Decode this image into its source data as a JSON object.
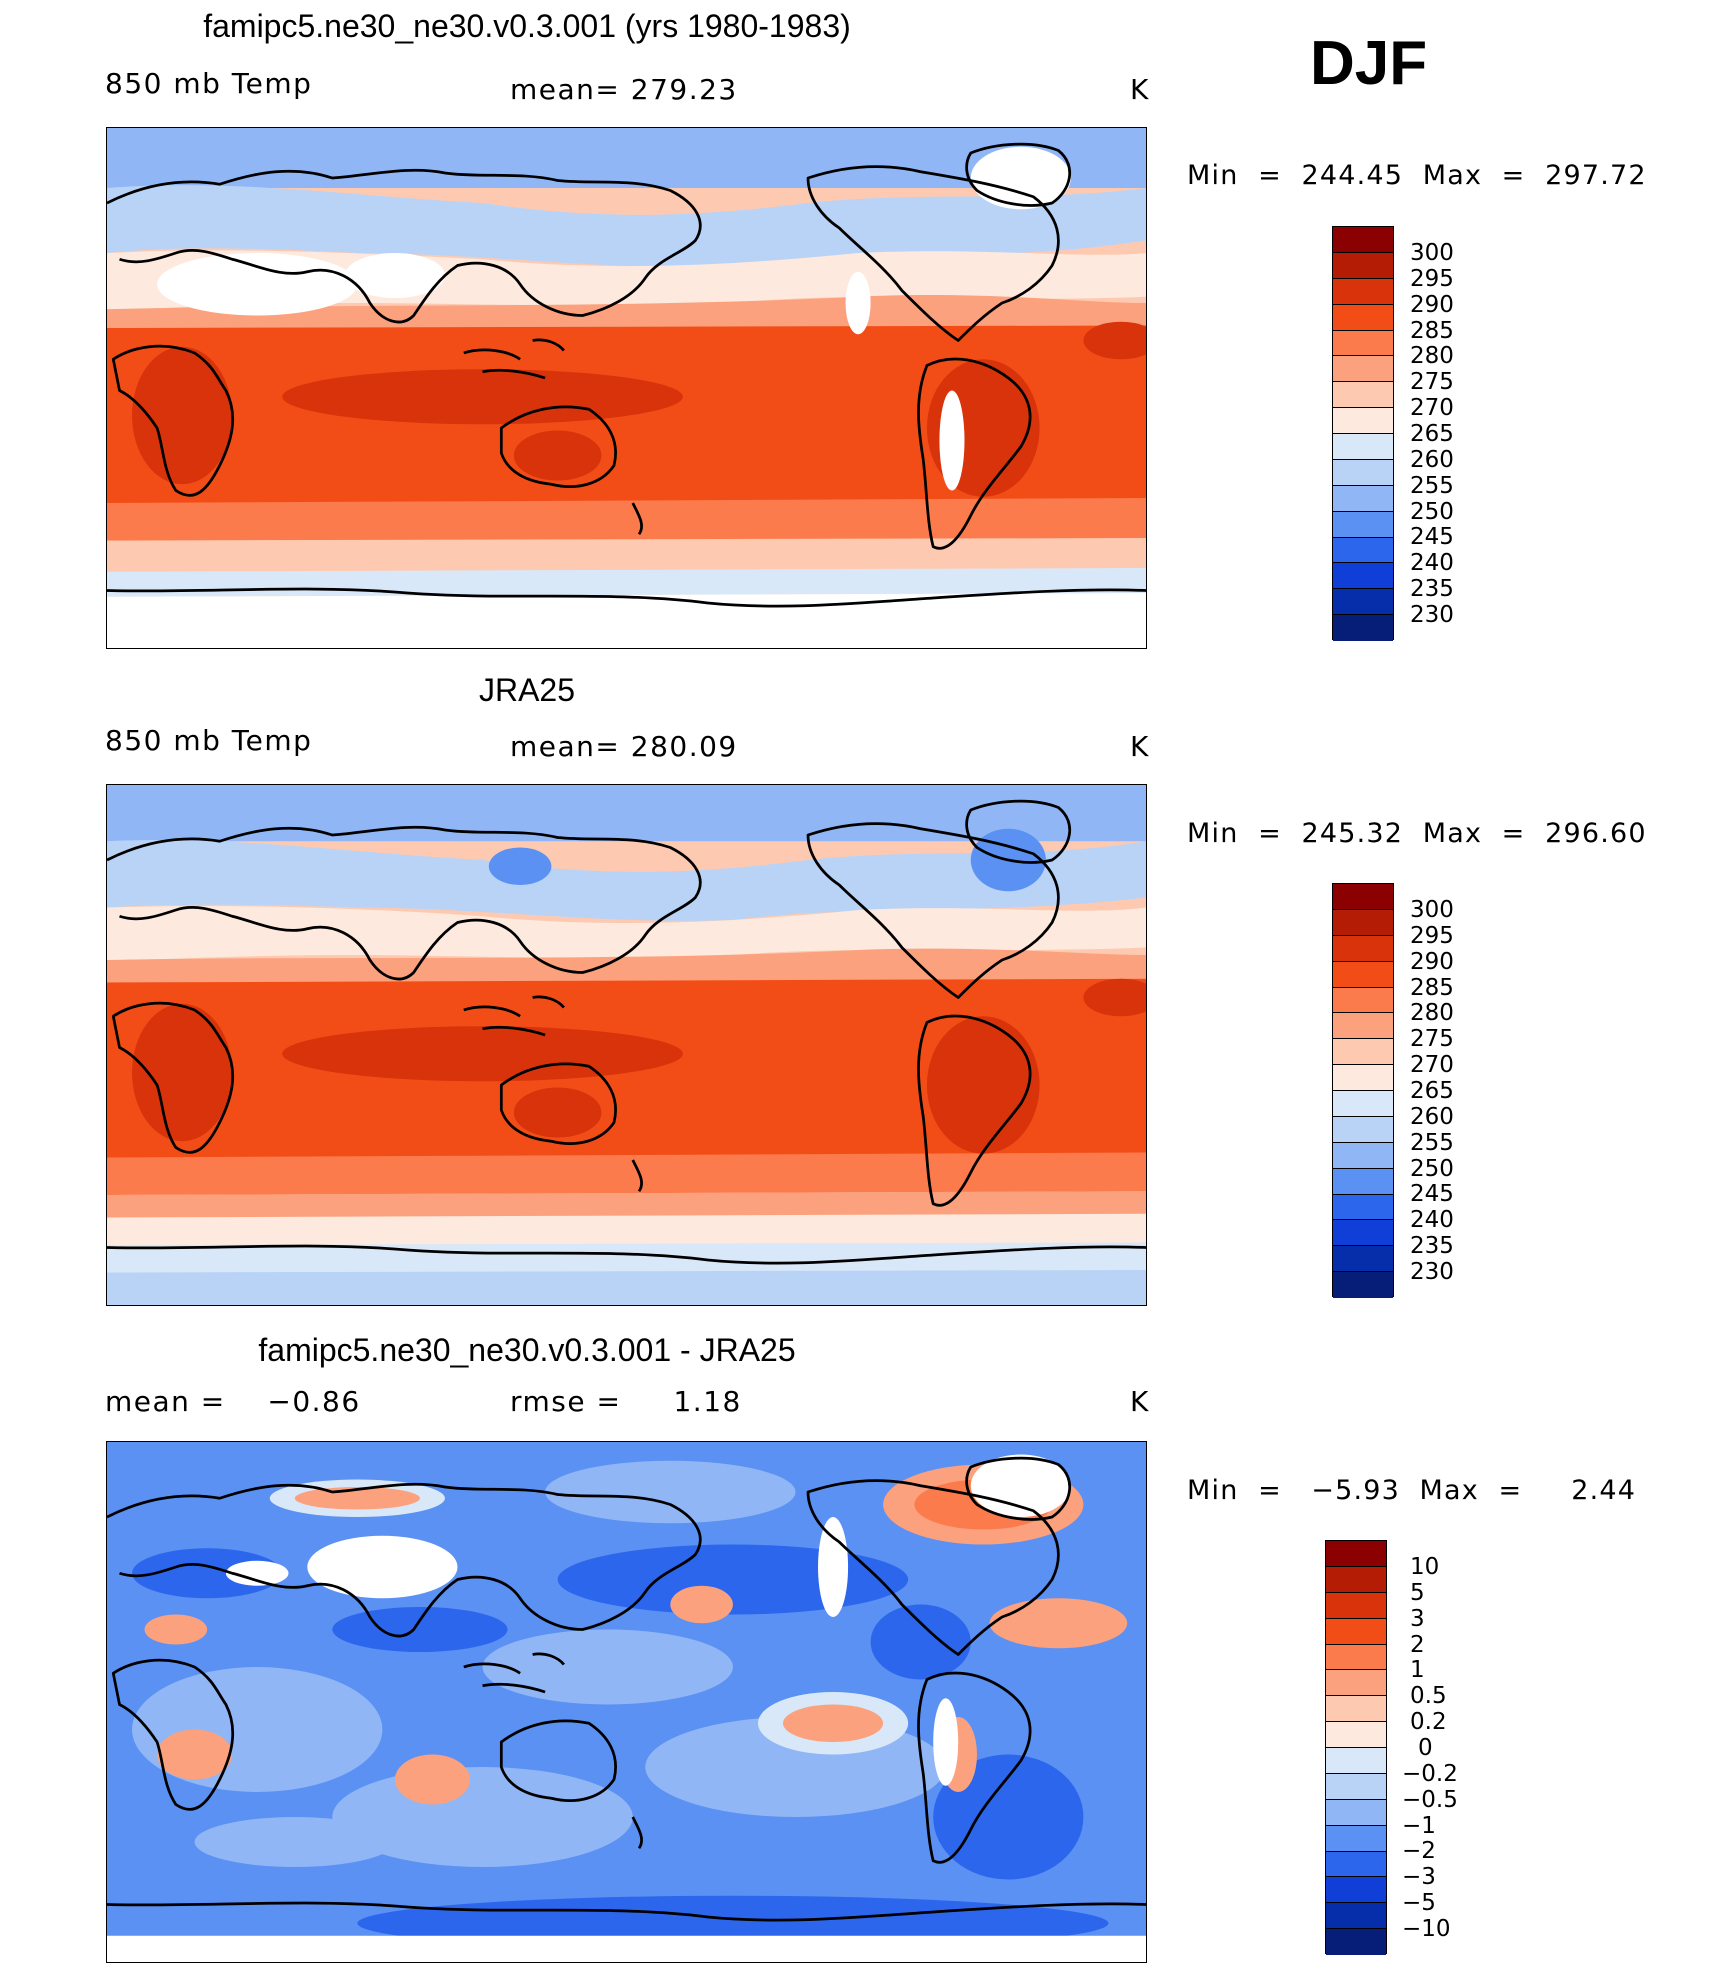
{
  "season": "DJF",
  "units_symbol": "K",
  "panels": [
    {
      "title": "famipc5.ne30_ne30.v0.3.001 (yrs 1980-1983)",
      "left_label": "850 mb Temp",
      "center_label": "mean= 279.23",
      "right_label": "K",
      "minmax": "Min  =  244.45  Max  =  297.72"
    },
    {
      "title": "JRA25",
      "left_label": "850 mb Temp",
      "center_label": "mean= 280.09",
      "right_label": "K",
      "minmax": "Min  =  245.32  Max  =  296.60"
    },
    {
      "title": "famipc5.ne30_ne30.v0.3.001 - JRA25",
      "left_label": "mean =    −0.86",
      "center_label": "rmse =     1.18",
      "right_label": "K",
      "minmax": "Min  =   −5.93  Max  =     2.44"
    }
  ],
  "colorbars": {
    "temperature": {
      "labels": [
        "300",
        "295",
        "290",
        "285",
        "280",
        "275",
        "270",
        "265",
        "260",
        "255",
        "250",
        "245",
        "240",
        "235",
        "230"
      ],
      "colors": [
        "#8b0000",
        "#b51c06",
        "#d8330a",
        "#f24d17",
        "#fb7b4c",
        "#fba17e",
        "#fdcab1",
        "#fde9de",
        "#d8e8f8",
        "#b9d3f6",
        "#90b6f5",
        "#5b91f3",
        "#2c66ec",
        "#0f3fd6",
        "#062eaa",
        "#061e78"
      ]
    },
    "difference": {
      "labels": [
        "10",
        "5",
        "3",
        "2",
        "1",
        "0.5",
        "0.2",
        "0",
        "−0.2",
        "−0.5",
        "−1",
        "−2",
        "−3",
        "−5",
        "−10"
      ],
      "colors": [
        "#8b0000",
        "#b51c06",
        "#d8330a",
        "#f24d17",
        "#fb7b4c",
        "#fba17e",
        "#fdcab1",
        "#fde9de",
        "#d8e8f8",
        "#b9d3f6",
        "#90b6f5",
        "#5b91f3",
        "#2c66ec",
        "#0f3fd6",
        "#062eaa",
        "#061e78"
      ]
    }
  }
}
